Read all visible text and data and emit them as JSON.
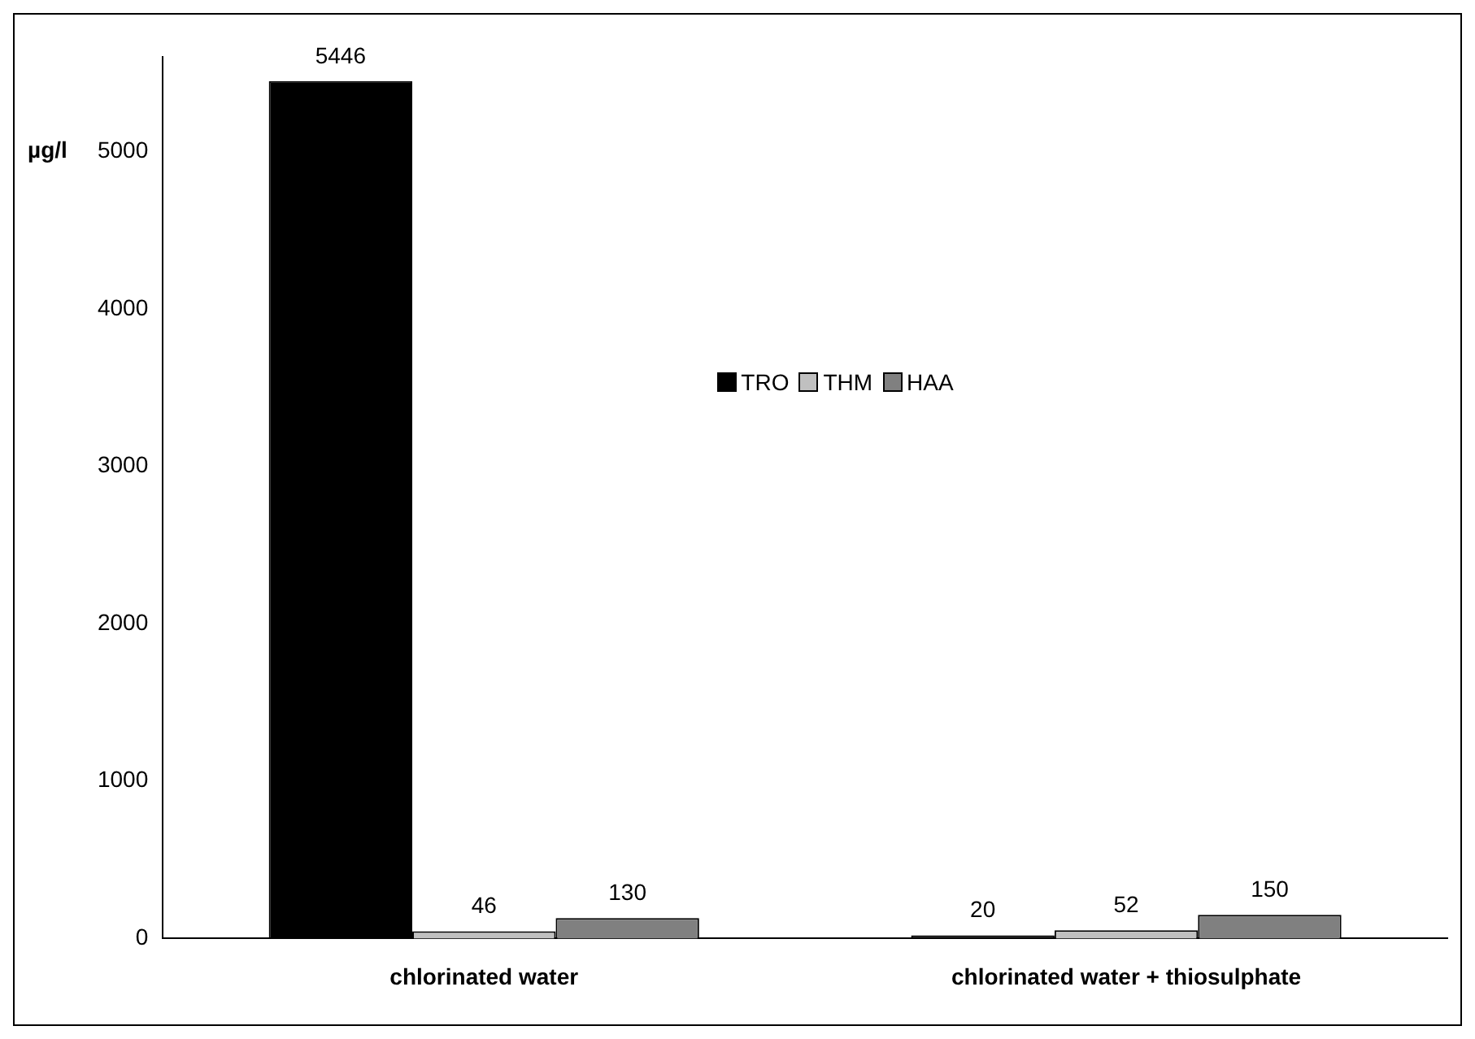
{
  "chart_data": {
    "type": "bar",
    "ylabel": "µg/l",
    "categories": [
      "chlorinated water",
      "chlorinated water + thiosulphate"
    ],
    "series": [
      {
        "name": "TRO",
        "color": "#000000",
        "values": [
          5446,
          20
        ]
      },
      {
        "name": "THM",
        "color": "#c0c0c0",
        "values": [
          46,
          52
        ]
      },
      {
        "name": "HAA",
        "color": "#808080",
        "values": [
          130,
          150
        ]
      }
    ],
    "ylim": [
      0,
      5600
    ],
    "yticks": [
      0,
      1000,
      2000,
      3000,
      4000,
      5000
    ],
    "grid": false,
    "legend": "top",
    "data_labels": true
  }
}
